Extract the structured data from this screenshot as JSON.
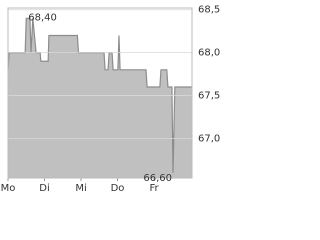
{
  "chart_data": {
    "type": "area",
    "x": [
      0,
      0.03,
      0.47,
      0.5,
      0.6,
      0.63,
      0.68,
      0.77,
      0.88,
      0.9,
      1.1,
      1.12,
      1.9,
      1.93,
      2.63,
      2.66,
      2.74,
      2.77,
      2.85,
      2.88,
      3.01,
      3.04,
      3.07,
      3.12,
      3.78,
      3.81,
      4.16,
      4.19,
      4.35,
      4.38,
      4.49,
      4.52,
      4.57,
      5.04
    ],
    "values": [
      67.8,
      68.0,
      68.0,
      68.4,
      68.4,
      68.0,
      68.4,
      68.0,
      68.0,
      67.9,
      67.9,
      68.2,
      68.2,
      68.0,
      68.0,
      67.8,
      67.8,
      68.0,
      68.0,
      67.8,
      67.8,
      68.2,
      67.8,
      67.8,
      67.8,
      67.6,
      67.6,
      67.8,
      67.8,
      67.6,
      67.6,
      66.6,
      67.6,
      67.6
    ],
    "color": "#c0c0c0",
    "line_color": "#8c8c8c",
    "xlim": [
      0,
      5.04
    ],
    "xticks": [
      {
        "value": 0,
        "label": "Mo"
      },
      {
        "value": 1,
        "label": "Di"
      },
      {
        "value": 2,
        "label": "Mi"
      },
      {
        "value": 3,
        "label": "Do"
      },
      {
        "value": 4,
        "label": "Fr"
      }
    ],
    "ylim": [
      66.54,
      68.52
    ],
    "yticks": [
      {
        "value": 67.0,
        "label": "67,0"
      },
      {
        "value": 67.5,
        "label": "67,5"
      },
      {
        "value": 68.0,
        "label": "68,0"
      },
      {
        "value": 68.5,
        "label": "68,5"
      }
    ],
    "grid": true,
    "annotations": [
      {
        "text": "68,40",
        "x": 0.5,
        "value": 68.4
      },
      {
        "text": "66,60",
        "x": 4.52,
        "value": 66.6
      }
    ]
  }
}
